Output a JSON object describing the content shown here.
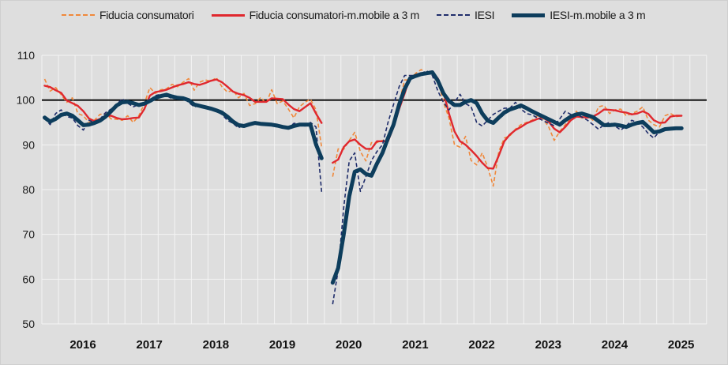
{
  "chart_data": {
    "type": "line",
    "title": "",
    "xlabel": "",
    "ylabel": "",
    "x_start": "2016-01",
    "x_frequency": "monthly",
    "x_tick_labels": [
      "2016",
      "2017",
      "2018",
      "2019",
      "2020",
      "2021",
      "2022",
      "2023",
      "2024",
      "2025"
    ],
    "ylim": [
      50,
      110
    ],
    "y_ticks": [
      50,
      60,
      70,
      80,
      90,
      100,
      110
    ],
    "reference_line": 100,
    "grid": true,
    "legend_position": "top",
    "series": [
      {
        "name": "Fiducia consumatori",
        "color": "#f0883a",
        "style": "dashed",
        "values": [
          104.7,
          102.0,
          102.8,
          101.2,
          99.5,
          100.5,
          97.0,
          96.5,
          95.0,
          95.5,
          96.8,
          97.0,
          95.8,
          95.7,
          95.5,
          96.5,
          95.0,
          96.5,
          99.2,
          102.8,
          101.5,
          102.3,
          102.5,
          103.5,
          103.0,
          104.0,
          104.8,
          102.2,
          104.0,
          104.5,
          104.2,
          105.0,
          103.0,
          101.8,
          102.2,
          100.5,
          101.5,
          98.8,
          99.2,
          100.6,
          99.3,
          102.3,
          99.2,
          99.8,
          98.0,
          96.0,
          98.5,
          99.5,
          100.2,
          97.8,
          89.5,
          null,
          82.9,
          89.1,
          89.0,
          91.0,
          92.8,
          88.5,
          86.4,
          90.5,
          90.5,
          91.0,
          91.0,
          95.0,
          99.5,
          104.5,
          104.5,
          106.0,
          106.8,
          105.8,
          106.3,
          104.5,
          99.5,
          96.0,
          90.0,
          89.5,
          91.9,
          86.5,
          85.5,
          88.2,
          85.0,
          80.8,
          88.5,
          91.5,
          92.0,
          93.5,
          94.5,
          95.0,
          95.5,
          96.5,
          95.8,
          94.0,
          91.0,
          93.0,
          94.5,
          96.0,
          97.5,
          96.0,
          96.5,
          95.5,
          98.5,
          98.8,
          97.0,
          97.8,
          98.0,
          96.5,
          97.0,
          97.5,
          98.5,
          95.5,
          94.5,
          94.0,
          96.5,
          97.0,
          96.3,
          96.5
        ]
      },
      {
        "name": "Fiducia consumatori-m.mobile a 3 m",
        "color": "#e0282e",
        "style": "solid",
        "values": [
          103.2,
          102.9,
          102.2,
          101.6,
          99.9,
          99.3,
          98.7,
          97.5,
          95.9,
          95.3,
          95.8,
          96.5,
          96.5,
          96.0,
          95.7,
          95.8,
          96.0,
          96.1,
          98.0,
          101.0,
          101.8,
          102.0,
          102.3,
          102.8,
          103.3,
          103.6,
          104.0,
          103.6,
          103.4,
          103.8,
          104.3,
          104.6,
          104.0,
          103.0,
          101.9,
          101.4,
          101.1,
          100.5,
          99.6,
          99.6,
          99.6,
          100.4,
          100.3,
          100.2,
          99.0,
          98.0,
          97.5,
          98.4,
          99.3,
          97.0,
          94.9,
          null,
          86.0,
          86.7,
          89.5,
          90.8,
          91.2,
          90.0,
          89.1,
          89.1,
          90.8,
          90.8,
          90.8,
          94.0,
          98.0,
          101.5,
          105.2,
          105.6,
          106.0,
          106.2,
          106.3,
          104.8,
          101.8,
          97.0,
          93.0,
          90.8,
          90.0,
          88.8,
          87.5,
          86.0,
          84.8,
          84.7,
          87.6,
          90.8,
          92.3,
          93.3,
          94.0,
          94.8,
          95.3,
          95.8,
          96.1,
          95.2,
          93.6,
          92.8,
          94.0,
          95.5,
          96.3,
          96.2,
          96.1,
          96.3,
          97.0,
          97.9,
          97.8,
          97.7,
          97.4,
          97.2,
          96.8,
          97.0,
          97.5,
          96.9,
          95.5,
          94.9,
          95.0,
          96.3,
          96.5,
          96.5
        ]
      },
      {
        "name": "IESI",
        "color": "#1f2d6b",
        "style": "dashed",
        "values": [
          96.0,
          94.5,
          97.0,
          97.8,
          96.3,
          96.0,
          94.3,
          93.3,
          95.5,
          95.0,
          95.7,
          97.2,
          98.0,
          99.0,
          100.3,
          99.3,
          98.5,
          99.0,
          99.5,
          100.0,
          101.0,
          101.3,
          101.0,
          100.3,
          100.5,
          100.6,
          99.5,
          98.5,
          98.7,
          98.2,
          97.8,
          97.5,
          96.8,
          95.5,
          94.8,
          93.8,
          94.5,
          94.8,
          94.9,
          94.5,
          94.8,
          94.3,
          94.1,
          93.8,
          93.7,
          94.8,
          94.6,
          94.2,
          95.0,
          94.0,
          79.5,
          null,
          54.4,
          62.0,
          76.0,
          86.4,
          88.2,
          79.6,
          82.9,
          86.5,
          88.5,
          90.0,
          95.0,
          99.0,
          103.0,
          105.5,
          105.5,
          105.5,
          106.0,
          106.5,
          105.5,
          102.0,
          99.5,
          97.8,
          99.5,
          101.3,
          99.2,
          98.5,
          95.0,
          94.2,
          95.5,
          96.8,
          97.5,
          98.2,
          98.2,
          99.5,
          98.0,
          97.0,
          96.7,
          96.0,
          95.4,
          94.8,
          94.3,
          95.8,
          97.5,
          96.8,
          96.8,
          96.2,
          95.5,
          94.5,
          93.5,
          94.5,
          95.0,
          94.2,
          93.3,
          94.2,
          95.5,
          95.0,
          94.0,
          92.5,
          91.5,
          93.0,
          93.5,
          93.5,
          93.5,
          94.0
        ]
      },
      {
        "name": "IESI-m.mobile a 3 m",
        "color": "#0d3d5c",
        "style": "solid-thick",
        "values": [
          96.1,
          95.2,
          95.8,
          96.7,
          97.0,
          96.5,
          95.5,
          94.4,
          94.5,
          94.9,
          95.4,
          96.3,
          97.5,
          98.8,
          99.5,
          99.6,
          99.3,
          98.9,
          99.2,
          99.8,
          100.5,
          100.9,
          101.2,
          100.8,
          100.5,
          100.4,
          100.0,
          99.0,
          98.7,
          98.4,
          98.1,
          97.7,
          97.2,
          96.3,
          95.2,
          94.4,
          94.2,
          94.6,
          94.9,
          94.7,
          94.6,
          94.5,
          94.3,
          94.0,
          93.8,
          94.2,
          94.5,
          94.5,
          94.5,
          90.1,
          87.0,
          null,
          59.2,
          62.5,
          70.0,
          78.5,
          84.0,
          84.5,
          83.5,
          83.1,
          85.8,
          88.2,
          91.5,
          94.5,
          99.0,
          102.5,
          104.9,
          105.4,
          105.8,
          106.0,
          106.2,
          104.3,
          101.5,
          99.8,
          98.9,
          98.9,
          99.6,
          100.0,
          99.3,
          97.0,
          95.4,
          94.9,
          96.1,
          97.2,
          97.9,
          98.3,
          98.8,
          98.2,
          97.5,
          96.9,
          96.3,
          95.7,
          95.1,
          94.5,
          95.5,
          96.3,
          96.8,
          97.0,
          96.6,
          96.2,
          95.3,
          94.4,
          94.4,
          94.5,
          94.3,
          94.0,
          94.5,
          94.9,
          95.1,
          94.0,
          92.8,
          93.0,
          93.5,
          93.6,
          93.7,
          93.7
        ]
      }
    ]
  }
}
